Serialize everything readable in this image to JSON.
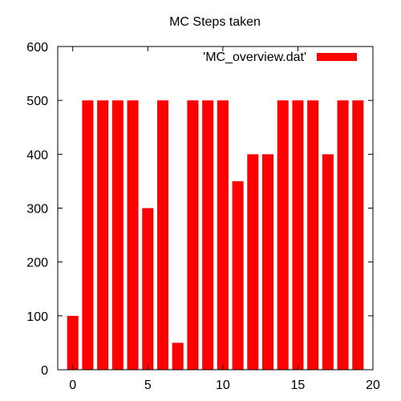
{
  "chart_data": {
    "type": "bar",
    "title": "MC Steps taken",
    "xlabel": "",
    "ylabel": "",
    "x": [
      0,
      1,
      2,
      3,
      4,
      5,
      6,
      7,
      8,
      9,
      10,
      11,
      12,
      13,
      14,
      15,
      16,
      17,
      18,
      19
    ],
    "series": [
      {
        "name": "'MC_overview.dat'",
        "color": "#ff0000",
        "values": [
          100,
          500,
          500,
          500,
          500,
          300,
          500,
          50,
          500,
          500,
          500,
          350,
          400,
          400,
          500,
          500,
          500,
          400,
          500,
          500
        ]
      }
    ],
    "xlim": [
      -1,
      20
    ],
    "ylim": [
      0,
      600
    ],
    "xticks": [
      "0",
      "5",
      "10",
      "15",
      "20"
    ],
    "yticks": [
      "0",
      "100",
      "200",
      "300",
      "400",
      "500",
      "600"
    ],
    "grid": false,
    "legend_position": "top-right"
  }
}
